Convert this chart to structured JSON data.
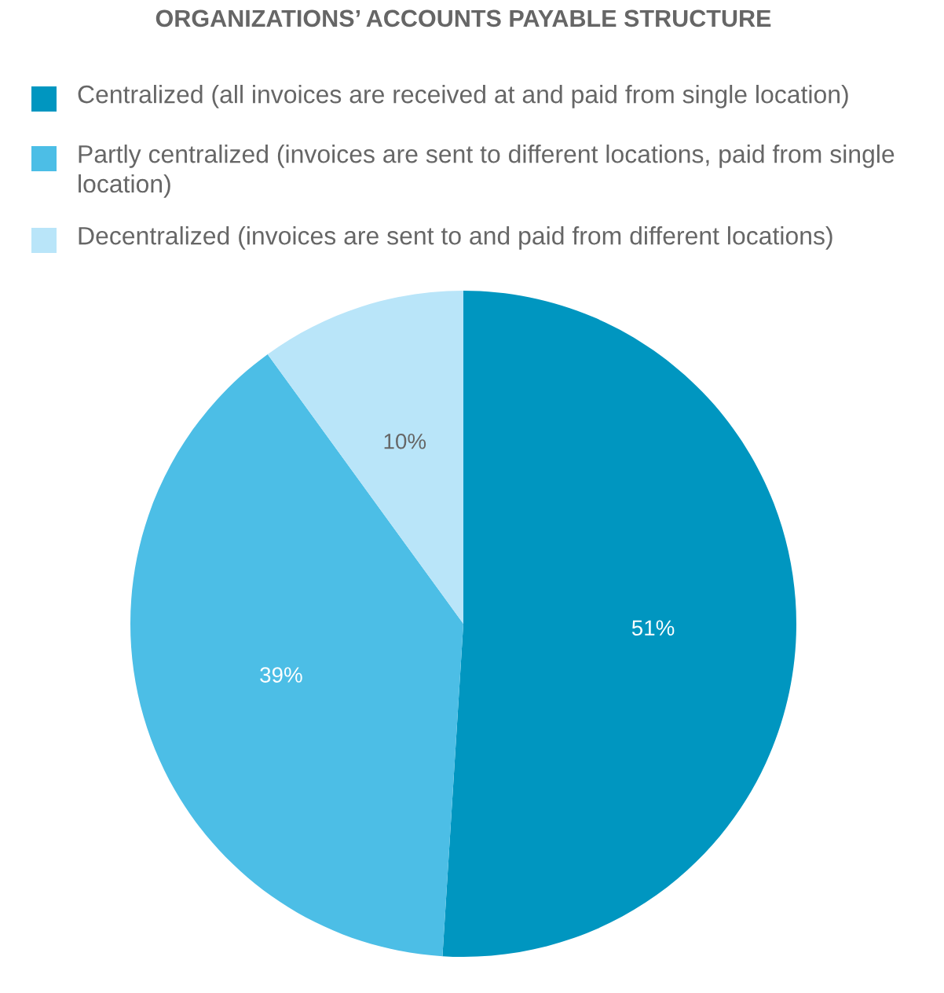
{
  "chart_data": {
    "type": "pie",
    "title": "ORGANIZATIONS’ ACCOUNTS PAYABLE STRUCTURE",
    "categories": [
      "Centralized (all invoices are received at and paid from single location)",
      "Partly centralized (invoices are sent to different locations, paid from single location)",
      "Decentralized (invoices are sent to and paid from different locations)"
    ],
    "values": [
      51,
      39,
      10
    ],
    "colors": [
      "#0096c0",
      "#4cbee6",
      "#b9e5f9"
    ],
    "value_labels": [
      "51%",
      "39%",
      "10%"
    ],
    "legend": "top"
  }
}
